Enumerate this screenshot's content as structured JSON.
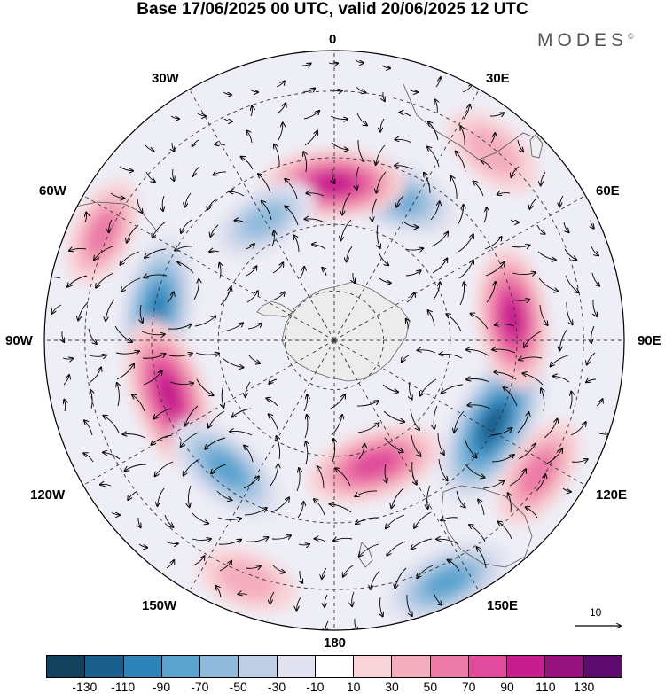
{
  "title": "Base 17/06/2025 00 UTC, valid 20/06/2025 12 UTC",
  "brand": {
    "name": "MODES",
    "mark": "©"
  },
  "longitude_labels": {
    "top": "0",
    "bottom": "180",
    "left": "90W",
    "right": "90E",
    "w30": "30W",
    "e30": "30E",
    "w60": "60W",
    "e60": "60E",
    "w120": "120W",
    "e120": "120E",
    "w150": "150W",
    "e150": "150E"
  },
  "reference_vector": {
    "label": "10"
  },
  "colorbar": {
    "colors": [
      "#12415e",
      "#1a5f8c",
      "#2e83b8",
      "#5aa3cf",
      "#8fbadc",
      "#bfd0e6",
      "#e2e2f0",
      "#ffffff",
      "#f8d4d8",
      "#f4adbc",
      "#ec7aa6",
      "#e04b9c",
      "#c61e8c",
      "#97117d",
      "#5e0a6e"
    ],
    "ticks": [
      "-130",
      "-110",
      "-90",
      "-70",
      "-50",
      "-30",
      "-10",
      "10",
      "30",
      "50",
      "70",
      "90",
      "110",
      "130"
    ]
  },
  "anomaly_centers": [
    {
      "lon": -80,
      "r": 0.62,
      "value": -85
    },
    {
      "lon": -108,
      "r": 0.6,
      "value": 95
    },
    {
      "lon": -140,
      "r": 0.58,
      "value": -65
    },
    {
      "lon": 162,
      "r": 0.45,
      "value": 75
    },
    {
      "lon": 118,
      "r": 0.62,
      "value": -115
    },
    {
      "lon": 83,
      "r": 0.62,
      "value": 80
    },
    {
      "lon": 22,
      "r": 0.54,
      "value": -70
    },
    {
      "lon": 0,
      "r": 0.54,
      "value": 80
    },
    {
      "lon": -30,
      "r": 0.48,
      "value": -40
    },
    {
      "lon": 155,
      "r": 0.92,
      "value": -65
    },
    {
      "lon": 123,
      "r": 0.84,
      "value": 50
    },
    {
      "lon": -65,
      "r": 0.88,
      "value": 40
    },
    {
      "lon": 40,
      "r": 0.85,
      "value": 35
    },
    {
      "lon": -160,
      "r": 0.88,
      "value": 30
    }
  ]
}
